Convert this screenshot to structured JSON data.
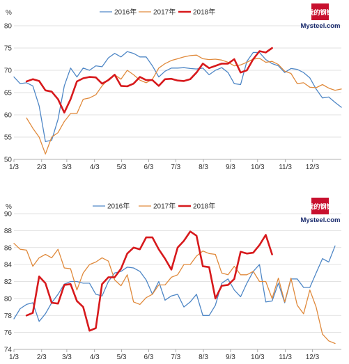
{
  "logo": {
    "text": "我的钢铁 Mysteel.com",
    "glyph": "我的钢铁",
    "wordmark": "Mysteel.com"
  },
  "chart_data": [
    {
      "type": "line",
      "ylabel": "%",
      "ylim": [
        50,
        80
      ],
      "yticks": [
        50,
        55,
        60,
        65,
        70,
        75,
        80
      ],
      "x_tick_labels": [
        "1/3",
        "2/3",
        "3/3",
        "4/3",
        "5/3",
        "6/3",
        "7/3",
        "8/3",
        "9/3",
        "10/3",
        "11/3",
        "12/3"
      ],
      "x_tick_weeks": [
        0,
        4.4,
        8.4,
        12.8,
        17.1,
        21.4,
        25.7,
        30.1,
        34.4,
        38.7,
        43.1,
        47.4
      ],
      "x_weeks_total": 52,
      "grid": "horizontal",
      "legend_position": "top-center",
      "series": [
        {
          "name": "2016年",
          "color": "#4f87c6",
          "width": 1.3,
          "values": [
            68.5,
            67.0,
            67.2,
            66.5,
            62.0,
            54.0,
            54.3,
            59.0,
            66.5,
            70.5,
            68.5,
            70.5,
            70.0,
            71.0,
            70.8,
            72.8,
            73.8,
            73.0,
            74.2,
            73.8,
            73.0,
            73.0,
            71.0,
            68.5,
            69.8,
            70.5,
            70.5,
            70.6,
            70.4,
            70.3,
            70.5,
            69.0,
            70.0,
            70.6,
            69.5,
            67.0,
            66.8,
            72.0,
            74.0,
            74.0,
            72.4,
            71.5,
            71.0,
            69.5,
            70.4,
            70.2,
            69.5,
            68.3,
            65.8,
            63.8,
            64.0,
            62.8,
            61.7
          ]
        },
        {
          "name": "2017年",
          "color": "#e08a3c",
          "width": 1.3,
          "values": [
            null,
            null,
            59.3,
            57.0,
            55.0,
            51.2,
            55.0,
            56.0,
            58.5,
            60.3,
            60.3,
            63.5,
            63.8,
            64.5,
            66.5,
            68.0,
            69.0,
            68.0,
            70.0,
            69.0,
            67.8,
            67.2,
            68.0,
            70.5,
            71.5,
            72.2,
            72.6,
            73.0,
            73.3,
            73.4,
            72.6,
            72.4,
            72.5,
            72.3,
            71.8,
            71.0,
            71.2,
            71.8,
            72.5,
            72.7,
            71.8,
            72.0,
            71.3,
            69.8,
            69.3,
            67.0,
            67.2,
            66.2,
            66.1,
            66.8,
            66.0,
            65.5,
            65.8
          ]
        },
        {
          "name": "2018年",
          "color": "#d7191c",
          "width": 2.6,
          "values": [
            null,
            null,
            67.5,
            68.0,
            67.6,
            65.5,
            65.2,
            63.5,
            60.5,
            63.5,
            67.5,
            68.2,
            68.5,
            68.4,
            67.0,
            67.8,
            69.0,
            66.5,
            66.4,
            67.0,
            68.5,
            67.8,
            67.8,
            66.5,
            68.0,
            68.1,
            67.7,
            67.6,
            68.0,
            69.5,
            71.5,
            70.5,
            71.0,
            71.5,
            71.5,
            72.5,
            69.5,
            70.0,
            72.5,
            74.3,
            74.0,
            75.0
          ]
        }
      ]
    },
    {
      "type": "line",
      "ylabel": "%",
      "ylim": [
        74,
        90
      ],
      "yticks": [
        74,
        76,
        78,
        80,
        82,
        84,
        86,
        88,
        90
      ],
      "x_tick_labels": [
        "1/3",
        "2/3",
        "3/3",
        "4/3",
        "5/3",
        "6/3",
        "7/3",
        "8/3",
        "9/3",
        "10/3",
        "11/3",
        "12/3"
      ],
      "x_tick_weeks": [
        0,
        4.4,
        8.4,
        12.8,
        17.1,
        21.4,
        25.7,
        30.1,
        34.4,
        38.7,
        43.1,
        47.4
      ],
      "x_weeks_total": 52,
      "grid": "horizontal",
      "legend_position": "top-center",
      "series": [
        {
          "name": "2016年",
          "color": "#4f87c6",
          "width": 1.3,
          "values": [
            77.6,
            78.8,
            79.3,
            79.5,
            77.3,
            78.2,
            79.5,
            80.5,
            81.7,
            82.0,
            82.0,
            81.8,
            81.8,
            80.5,
            80.3,
            82.0,
            83.0,
            83.2,
            83.7,
            83.6,
            83.2,
            82.2,
            80.5,
            82.0,
            79.8,
            80.3,
            80.5,
            79.0,
            79.6,
            80.5,
            78.0,
            78.0,
            79.2,
            81.8,
            82.3,
            81.0,
            80.2,
            81.8,
            83.2,
            84.0,
            79.6,
            79.7,
            81.8,
            79.5,
            82.3,
            82.3,
            81.3,
            81.3,
            83.0,
            84.7,
            84.3,
            86.2
          ]
        },
        {
          "name": "2017年",
          "color": "#e08a3c",
          "width": 1.3,
          "values": [
            86.5,
            85.8,
            85.7,
            83.8,
            84.8,
            85.2,
            84.8,
            85.8,
            83.6,
            83.5,
            81.0,
            83.0,
            84.0,
            84.3,
            84.8,
            84.4,
            82.2,
            81.5,
            82.8,
            79.6,
            79.3,
            80.1,
            80.5,
            81.6,
            81.6,
            82.5,
            82.8,
            84.0,
            84.0,
            85.0,
            85.6,
            85.3,
            85.2,
            83.0,
            82.8,
            83.8,
            82.8,
            82.8,
            83.2,
            82.0,
            82.0,
            80.0,
            82.4,
            79.6,
            82.4,
            79.2,
            78.2,
            81.0,
            79.0,
            75.8,
            75.0,
            74.7
          ]
        },
        {
          "name": "2018年",
          "color": "#d7191c",
          "width": 2.6,
          "values": [
            null,
            null,
            78.0,
            78.3,
            82.6,
            81.8,
            79.5,
            79.4,
            81.6,
            81.7,
            79.7,
            79.0,
            76.2,
            76.5,
            81.7,
            82.5,
            82.5,
            83.5,
            85.3,
            86.0,
            85.8,
            87.2,
            87.2,
            85.8,
            84.7,
            83.4,
            86.0,
            86.8,
            87.9,
            87.4,
            83.8,
            83.7,
            80.0,
            81.5,
            81.6,
            82.3,
            85.5,
            85.3,
            85.4,
            86.3,
            87.5,
            85.2
          ]
        }
      ]
    }
  ]
}
